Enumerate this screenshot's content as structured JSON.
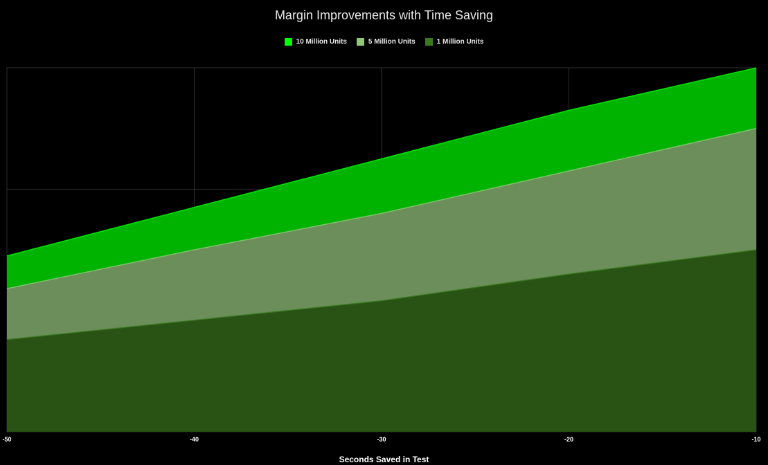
{
  "chart_data": {
    "type": "area",
    "title": "Margin Improvements with Time Saving",
    "xlabel": "Seconds Saved in Test",
    "ylabel": "",
    "x": [
      -50,
      -40,
      -30,
      -20,
      -10
    ],
    "xlim": [
      -50,
      -10
    ],
    "ylim": [
      0,
      3
    ],
    "grid": true,
    "legend_position": "top-center",
    "series": [
      {
        "name": "10 Million Units",
        "color": "#00b300",
        "legend_color": "#00ff00",
        "values": [
          1.45,
          1.85,
          2.25,
          2.65,
          3.0
        ]
      },
      {
        "name": "5 Million Units",
        "color": "#6b8e5a",
        "legend_color": "#90c87a",
        "values": [
          1.18,
          1.5,
          1.8,
          2.15,
          2.5
        ]
      },
      {
        "name": "1 Million Units",
        "color": "#295215",
        "legend_color": "#3a7a1f",
        "values": [
          0.76,
          0.92,
          1.08,
          1.3,
          1.5
        ]
      }
    ]
  }
}
